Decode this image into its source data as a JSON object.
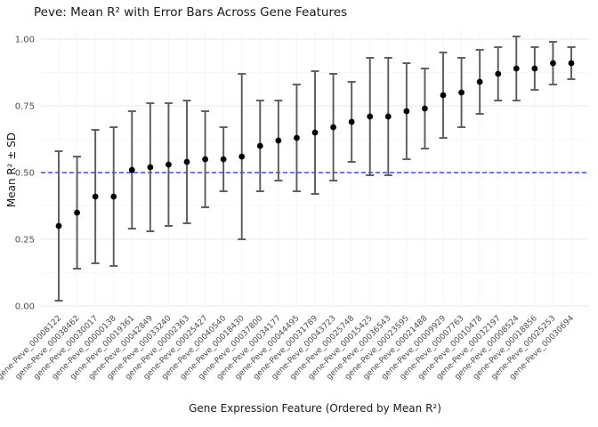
{
  "chart_data": {
    "type": "scatter",
    "subtype": "point-with-errorbars",
    "title": "Peve: Mean R² with Error Bars Across Gene Features",
    "xlabel": "Gene Expression Feature (Ordered by Mean R²)",
    "ylabel": "Mean R² ± SD",
    "ylim": [
      0.0,
      1.0
    ],
    "ytick_values": [
      0.0,
      0.25,
      0.5,
      0.75,
      1.0
    ],
    "ytick_labels": [
      "0.00",
      "0.25",
      "0.50",
      "0.75",
      "1.00"
    ],
    "grid": true,
    "legend": "none",
    "reference_line": {
      "y": 0.5,
      "style": "dashed",
      "color": "#2222e6"
    },
    "categories": [
      "gene-Peve_00008122",
      "gene-Peve_00038462",
      "gene-Peve_00030017",
      "gene-Peve_00000138",
      "gene-Peve_00019361",
      "gene-Peve_00042849",
      "gene-Peve_00033240",
      "gene-Peve_00002363",
      "gene-Peve_00025427",
      "gene-Peve_00040540",
      "gene-Peve_00018430",
      "gene-Peve_00037800",
      "gene-Peve_00034177",
      "gene-Peve_00044495",
      "gene-Peve_00031789",
      "gene-Peve_00043723",
      "gene-Peve_00025748",
      "gene-Peve_00015425",
      "gene-Peve_00036543",
      "gene-Peve_00023595",
      "gene-Peve_00021488",
      "gene-Peve_00009929",
      "gene-Peve_00007763",
      "gene-Peve_00010478",
      "gene-Peve_00032197",
      "gene-Peve_00008524",
      "gene-Peve_00018856",
      "gene-Peve_00025253",
      "gene-Peve_00030694"
    ],
    "series": [
      {
        "name": "Mean R² ± SD",
        "values": [
          0.3,
          0.35,
          0.41,
          0.41,
          0.51,
          0.52,
          0.53,
          0.54,
          0.55,
          0.55,
          0.56,
          0.6,
          0.62,
          0.63,
          0.65,
          0.67,
          0.69,
          0.71,
          0.71,
          0.73,
          0.74,
          0.79,
          0.8,
          0.84,
          0.87,
          0.89,
          0.89,
          0.91,
          0.91
        ],
        "sd": [
          0.28,
          0.21,
          0.25,
          0.26,
          0.22,
          0.24,
          0.23,
          0.23,
          0.18,
          0.12,
          0.31,
          0.17,
          0.15,
          0.2,
          0.23,
          0.2,
          0.15,
          0.22,
          0.22,
          0.18,
          0.15,
          0.16,
          0.13,
          0.12,
          0.1,
          0.12,
          0.08,
          0.08,
          0.06
        ]
      }
    ],
    "colors": {
      "point": "#000000",
      "error_bar": "#5a5a5a",
      "grid_major": "#e7e7e7",
      "grid_minor": "#f4f4f4",
      "tick_label": "#4d4d4d",
      "axis_title": "#1a1a1a",
      "background": "#ffffff"
    }
  }
}
